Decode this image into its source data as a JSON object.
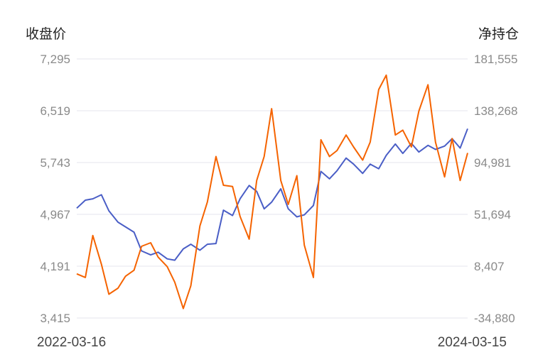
{
  "chart_data": {
    "type": "line",
    "left_axis_title": "收盘价",
    "right_axis_title": "净持仓",
    "left_ticks": [
      "7,295",
      "6,519",
      "5,743",
      "4,967",
      "4,191",
      "3,415"
    ],
    "right_ticks": [
      "181,555",
      "138,268",
      "94,981",
      "51,694",
      "8,407",
      "-34,880"
    ],
    "x_start": "2022-03-16",
    "x_end": "2024-03-15",
    "left_range": [
      3415,
      7295
    ],
    "right_range": [
      -34880,
      181555
    ],
    "grid": true,
    "series": [
      {
        "axis": "left",
        "color": "#4a5ec6",
        "x": [
          "2022-03-16",
          "2022-04-01",
          "2022-04-15",
          "2022-05-01",
          "2022-05-15",
          "2022-06-01",
          "2022-06-15",
          "2022-07-01",
          "2022-07-15",
          "2022-08-01",
          "2022-08-15",
          "2022-09-01",
          "2022-09-15",
          "2022-10-01",
          "2022-10-15",
          "2022-11-01",
          "2022-11-15",
          "2022-12-01",
          "2022-12-15",
          "2023-01-01",
          "2023-01-15",
          "2023-02-01",
          "2023-02-15",
          "2023-03-01",
          "2023-03-15",
          "2023-04-01",
          "2023-04-15",
          "2023-05-01",
          "2023-05-15",
          "2023-06-01",
          "2023-06-15",
          "2023-07-01",
          "2023-07-15",
          "2023-08-01",
          "2023-08-15",
          "2023-09-01",
          "2023-09-15",
          "2023-10-01",
          "2023-10-15",
          "2023-11-01",
          "2023-11-15",
          "2023-12-01",
          "2023-12-15",
          "2024-01-01",
          "2024-01-15",
          "2024-02-01",
          "2024-02-15",
          "2024-03-01",
          "2024-03-15"
        ],
        "values": [
          5060,
          5180,
          5200,
          5260,
          5020,
          4850,
          4780,
          4700,
          4420,
          4360,
          4400,
          4300,
          4280,
          4450,
          4520,
          4430,
          4520,
          4530,
          5030,
          4950,
          5200,
          5400,
          5310,
          5050,
          5150,
          5350,
          5050,
          4930,
          4960,
          5100,
          5610,
          5500,
          5620,
          5810,
          5720,
          5580,
          5720,
          5650,
          5850,
          6020,
          5880,
          6030,
          5900,
          6000,
          5940,
          5990,
          6100,
          5960,
          6250
        ]
      },
      {
        "axis": "right",
        "color": "#f56300",
        "x": [
          "2022-03-16",
          "2022-04-01",
          "2022-04-15",
          "2022-05-01",
          "2022-05-15",
          "2022-06-01",
          "2022-06-15",
          "2022-07-01",
          "2022-07-15",
          "2022-08-01",
          "2022-08-15",
          "2022-09-01",
          "2022-09-15",
          "2022-10-01",
          "2022-10-15",
          "2022-11-01",
          "2022-11-15",
          "2022-12-01",
          "2022-12-15",
          "2023-01-01",
          "2023-01-15",
          "2023-02-01",
          "2023-02-15",
          "2023-03-01",
          "2023-03-15",
          "2023-04-01",
          "2023-04-15",
          "2023-05-01",
          "2023-05-15",
          "2023-06-01",
          "2023-06-15",
          "2023-07-01",
          "2023-07-15",
          "2023-08-01",
          "2023-08-15",
          "2023-09-01",
          "2023-09-15",
          "2023-10-01",
          "2023-10-15",
          "2023-11-01",
          "2023-11-15",
          "2023-12-01",
          "2023-12-15",
          "2024-01-01",
          "2024-01-15",
          "2024-02-01",
          "2024-02-15",
          "2024-03-01",
          "2024-03-15"
        ],
        "values": [
          2000,
          -1000,
          34000,
          10000,
          -15000,
          -10000,
          0,
          5000,
          25000,
          28000,
          16000,
          8000,
          -5000,
          -27000,
          -8000,
          42000,
          62000,
          100000,
          76000,
          75000,
          50000,
          31000,
          80000,
          100000,
          140000,
          80000,
          60000,
          84000,
          26000,
          -1000,
          114000,
          100000,
          105000,
          118000,
          108000,
          97000,
          112000,
          156000,
          168000,
          118000,
          122000,
          108000,
          138000,
          160000,
          112000,
          83000,
          115000,
          80000,
          103000
        ]
      }
    ]
  }
}
